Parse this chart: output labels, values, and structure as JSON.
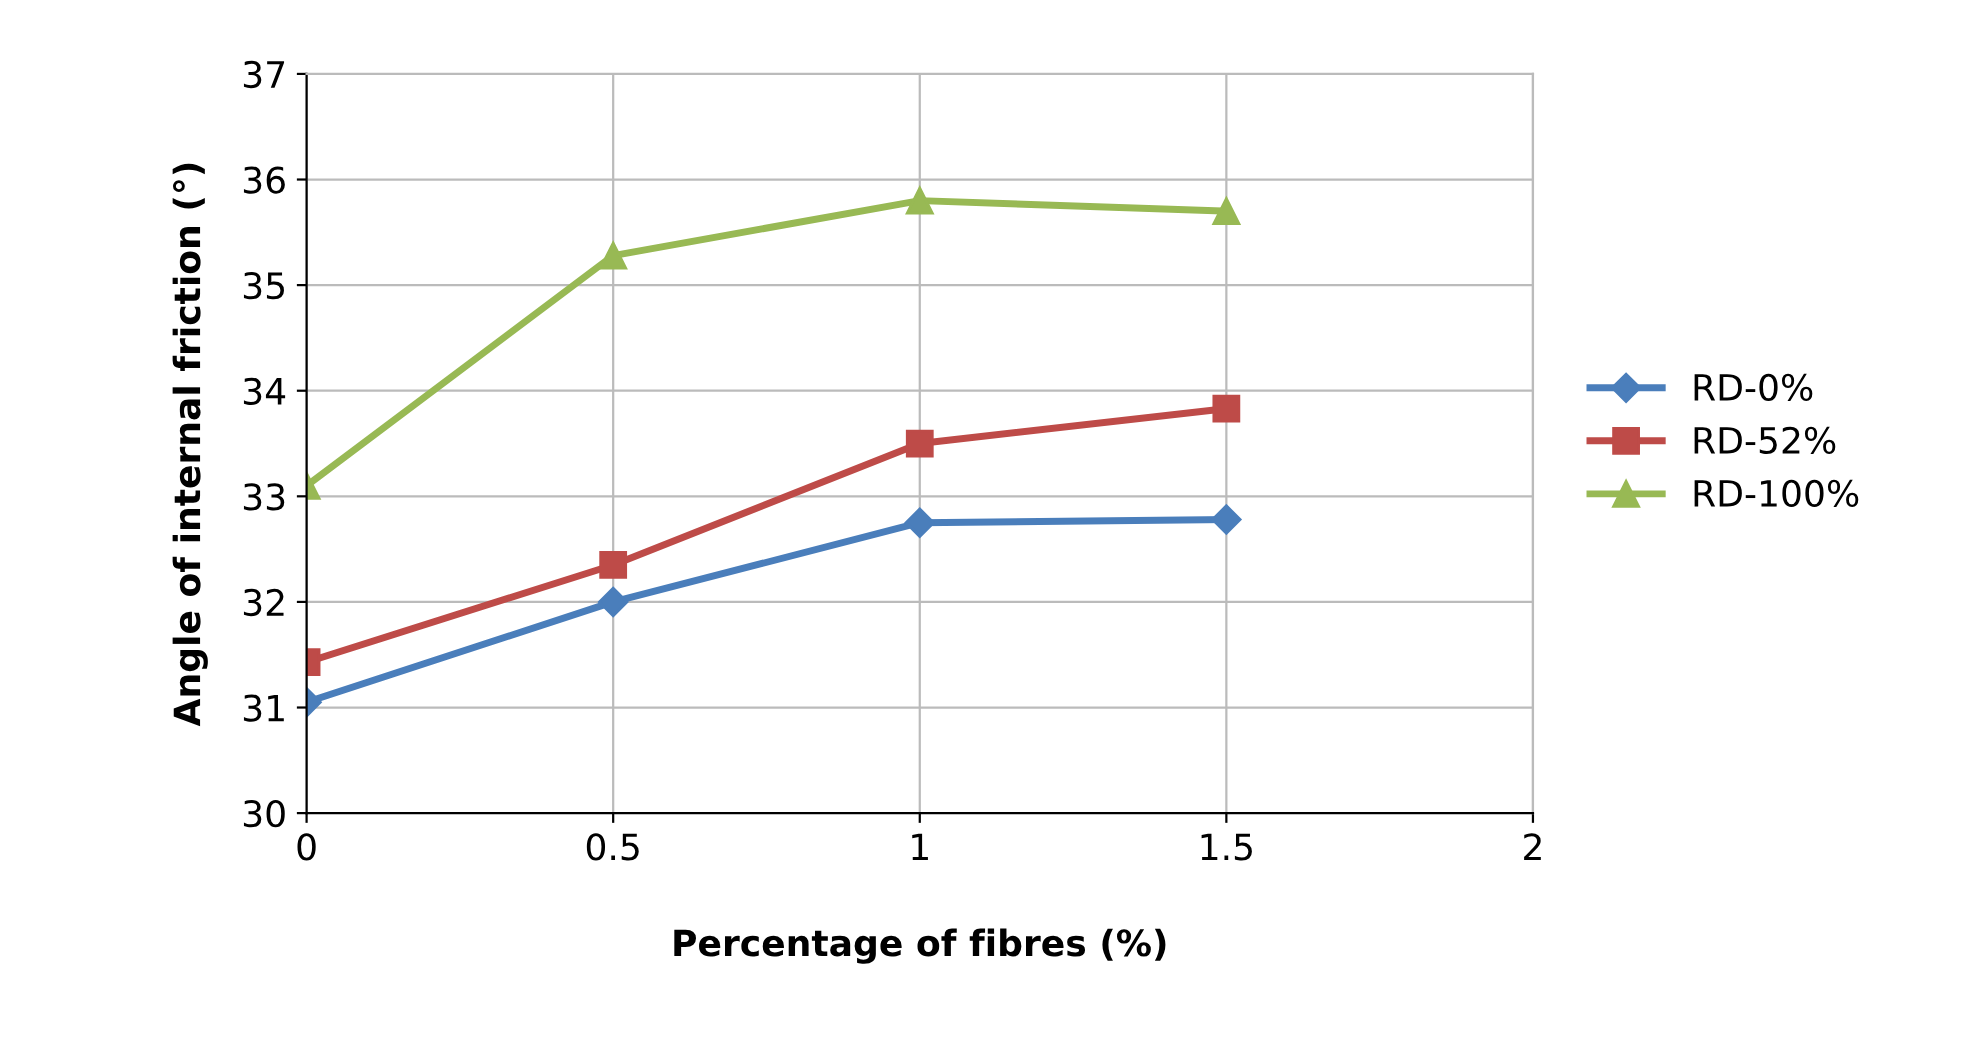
{
  "chart_data": {
    "type": "line",
    "xlabel": "Percentage of fibres (%)",
    "ylabel": "Angle of internal friction (°)",
    "x": [
      0,
      0.5,
      1,
      1.5
    ],
    "series": [
      {
        "name": "RD-0%",
        "color": "#4a7ebb",
        "marker": "diamond",
        "values": [
          31.05,
          32.0,
          32.75,
          32.78
        ]
      },
      {
        "name": "RD-52%",
        "color": "#be4b48",
        "marker": "square",
        "values": [
          31.43,
          32.35,
          33.5,
          33.83
        ]
      },
      {
        "name": "RD-100%",
        "color": "#98b954",
        "marker": "triangle",
        "values": [
          33.1,
          35.28,
          35.8,
          35.7
        ]
      }
    ],
    "xlim": [
      0,
      2
    ],
    "xticks": [
      0,
      0.5,
      1,
      1.5,
      2
    ],
    "ylim": [
      30,
      37
    ],
    "yticks": [
      30,
      31,
      32,
      33,
      34,
      35,
      36,
      37
    ],
    "grid": true,
    "legend": "right",
    "line_style": "solid"
  }
}
